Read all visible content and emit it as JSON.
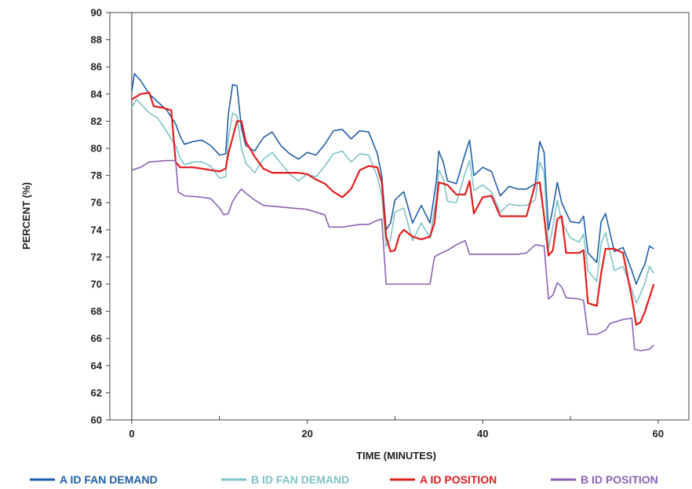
{
  "chart_data": {
    "type": "line",
    "title": "",
    "xlabel": "TIME (MINUTES)",
    "ylabel": "PERCENT (%)",
    "xlim": [
      -2.5,
      63.5
    ],
    "ylim": [
      60,
      90
    ],
    "xticks": [
      0,
      20,
      40,
      60
    ],
    "yticks": [
      60,
      62,
      64,
      66,
      68,
      70,
      72,
      74,
      76,
      78,
      80,
      82,
      84,
      86,
      88,
      90
    ],
    "grid": false,
    "legend_position": "bottom",
    "series": [
      {
        "name": "A ID FAN DEMAND",
        "color": "#1f5fa8",
        "points": [
          [
            0,
            84.2
          ],
          [
            0.3,
            85.5
          ],
          [
            1,
            85.0
          ],
          [
            2,
            84.0
          ],
          [
            3,
            83.4
          ],
          [
            4,
            82.8
          ],
          [
            5,
            81.8
          ],
          [
            5.5,
            80.9
          ],
          [
            6,
            80.3
          ],
          [
            7,
            80.5
          ],
          [
            8,
            80.6
          ],
          [
            9,
            80.2
          ],
          [
            10,
            79.5
          ],
          [
            10.7,
            79.6
          ],
          [
            11,
            82.5
          ],
          [
            11.5,
            84.7
          ],
          [
            12,
            84.6
          ],
          [
            12.5,
            81.5
          ],
          [
            13,
            80.2
          ],
          [
            14,
            79.8
          ],
          [
            15,
            80.8
          ],
          [
            16,
            81.2
          ],
          [
            17,
            80.2
          ],
          [
            18,
            79.6
          ],
          [
            19,
            79.2
          ],
          [
            20,
            79.7
          ],
          [
            21,
            79.5
          ],
          [
            22,
            80.3
          ],
          [
            23,
            81.3
          ],
          [
            24,
            81.4
          ],
          [
            25,
            80.7
          ],
          [
            26,
            81.3
          ],
          [
            27,
            81.2
          ],
          [
            28,
            79.6
          ],
          [
            28.5,
            78.0
          ],
          [
            29,
            74.0
          ],
          [
            29.5,
            74.5
          ],
          [
            30,
            76.2
          ],
          [
            31,
            76.8
          ],
          [
            32,
            74.5
          ],
          [
            33,
            75.8
          ],
          [
            34,
            74.5
          ],
          [
            34.7,
            77.5
          ],
          [
            35,
            79.8
          ],
          [
            35.5,
            79.0
          ],
          [
            36,
            77.6
          ],
          [
            37,
            77.4
          ],
          [
            38,
            79.6
          ],
          [
            38.5,
            80.6
          ],
          [
            39,
            78.0
          ],
          [
            40,
            78.6
          ],
          [
            41,
            78.3
          ],
          [
            42,
            76.5
          ],
          [
            43,
            77.2
          ],
          [
            44,
            77.0
          ],
          [
            45,
            77.0
          ],
          [
            46,
            77.4
          ],
          [
            46.5,
            80.5
          ],
          [
            47,
            79.7
          ],
          [
            47.5,
            74.0
          ],
          [
            48,
            75.6
          ],
          [
            48.5,
            77.5
          ],
          [
            49,
            76.0
          ],
          [
            50,
            74.6
          ],
          [
            51,
            74.5
          ],
          [
            51.5,
            75.0
          ],
          [
            52,
            72.3
          ],
          [
            53,
            71.6
          ],
          [
            53.5,
            74.6
          ],
          [
            54,
            75.2
          ],
          [
            55,
            72.4
          ],
          [
            56,
            72.7
          ],
          [
            57,
            71.0
          ],
          [
            57.5,
            70.0
          ],
          [
            58,
            70.8
          ],
          [
            58.5,
            71.5
          ],
          [
            59,
            72.8
          ],
          [
            59.5,
            72.6
          ]
        ]
      },
      {
        "name": "B ID FAN DEMAND",
        "color": "#7fc4c8",
        "points": [
          [
            0,
            83.0
          ],
          [
            0.5,
            83.6
          ],
          [
            1,
            83.3
          ],
          [
            2,
            82.6
          ],
          [
            3,
            82.2
          ],
          [
            4,
            81.2
          ],
          [
            5,
            80.2
          ],
          [
            5.5,
            79.3
          ],
          [
            6,
            78.8
          ],
          [
            7,
            79.0
          ],
          [
            8,
            79.0
          ],
          [
            9,
            78.7
          ],
          [
            10,
            77.8
          ],
          [
            10.7,
            77.9
          ],
          [
            11,
            80.7
          ],
          [
            11.5,
            82.6
          ],
          [
            12,
            82.4
          ],
          [
            12.5,
            80.0
          ],
          [
            13,
            78.9
          ],
          [
            14,
            78.2
          ],
          [
            15,
            79.2
          ],
          [
            16,
            79.7
          ],
          [
            17,
            78.9
          ],
          [
            18,
            78.1
          ],
          [
            19,
            77.6
          ],
          [
            20,
            78.1
          ],
          [
            21,
            77.9
          ],
          [
            22,
            78.7
          ],
          [
            23,
            79.6
          ],
          [
            24,
            79.8
          ],
          [
            25,
            79.0
          ],
          [
            26,
            79.6
          ],
          [
            27,
            79.5
          ],
          [
            28,
            77.9
          ],
          [
            28.5,
            76.5
          ],
          [
            29,
            72.8
          ],
          [
            29.5,
            73.3
          ],
          [
            30,
            75.3
          ],
          [
            31,
            75.6
          ],
          [
            32,
            73.2
          ],
          [
            33,
            74.5
          ],
          [
            34,
            73.4
          ],
          [
            34.7,
            76.3
          ],
          [
            35,
            78.4
          ],
          [
            35.5,
            77.8
          ],
          [
            36,
            76.1
          ],
          [
            37,
            76.0
          ],
          [
            38,
            78.2
          ],
          [
            38.5,
            79.1
          ],
          [
            39,
            76.9
          ],
          [
            40,
            77.3
          ],
          [
            41,
            76.8
          ],
          [
            42,
            75.3
          ],
          [
            43,
            75.9
          ],
          [
            44,
            75.8
          ],
          [
            45,
            75.8
          ],
          [
            46,
            76.2
          ],
          [
            46.5,
            79.0
          ],
          [
            47,
            78.2
          ],
          [
            47.5,
            72.6
          ],
          [
            48,
            74.2
          ],
          [
            48.5,
            76.2
          ],
          [
            49,
            74.6
          ],
          [
            50,
            73.4
          ],
          [
            51,
            73.1
          ],
          [
            51.5,
            73.7
          ],
          [
            52,
            71.0
          ],
          [
            53,
            70.2
          ],
          [
            53.5,
            73.0
          ],
          [
            54,
            73.8
          ],
          [
            55,
            71.0
          ],
          [
            56,
            71.3
          ],
          [
            57,
            69.6
          ],
          [
            57.5,
            68.6
          ],
          [
            58,
            69.3
          ],
          [
            58.5,
            70.1
          ],
          [
            59,
            71.3
          ],
          [
            59.5,
            70.8
          ]
        ]
      },
      {
        "name": "A ID POSITION",
        "color": "#e41d1d",
        "points": [
          [
            0,
            83.6
          ],
          [
            1,
            84.0
          ],
          [
            2,
            84.1
          ],
          [
            2.5,
            83.1
          ],
          [
            3.5,
            83.0
          ],
          [
            4.5,
            82.8
          ],
          [
            5,
            79.0
          ],
          [
            5.5,
            78.6
          ],
          [
            7,
            78.6
          ],
          [
            8,
            78.5
          ],
          [
            9,
            78.4
          ],
          [
            10,
            78.3
          ],
          [
            10.7,
            78.5
          ],
          [
            11,
            79.6
          ],
          [
            12,
            82.0
          ],
          [
            12.5,
            82.0
          ],
          [
            13,
            80.5
          ],
          [
            14,
            79.4
          ],
          [
            15,
            78.5
          ],
          [
            16,
            78.2
          ],
          [
            18,
            78.2
          ],
          [
            19,
            78.2
          ],
          [
            20,
            78.1
          ],
          [
            21,
            77.7
          ],
          [
            22,
            77.4
          ],
          [
            23,
            76.8
          ],
          [
            24,
            76.4
          ],
          [
            25,
            77.0
          ],
          [
            26,
            78.4
          ],
          [
            27,
            78.7
          ],
          [
            28,
            78.6
          ],
          [
            28.5,
            77.5
          ],
          [
            29,
            73.5
          ],
          [
            29.5,
            72.4
          ],
          [
            30,
            72.5
          ],
          [
            30.5,
            73.6
          ],
          [
            31,
            74.0
          ],
          [
            32,
            73.5
          ],
          [
            33,
            73.3
          ],
          [
            34,
            73.5
          ],
          [
            34.5,
            74.5
          ],
          [
            35,
            77.5
          ],
          [
            36,
            77.3
          ],
          [
            37,
            76.6
          ],
          [
            38,
            76.6
          ],
          [
            38.5,
            77.6
          ],
          [
            39,
            75.2
          ],
          [
            40,
            76.4
          ],
          [
            41,
            76.5
          ],
          [
            42,
            75.0
          ],
          [
            43,
            75.0
          ],
          [
            44,
            75.0
          ],
          [
            45,
            75.0
          ],
          [
            46,
            77.4
          ],
          [
            46.5,
            77.5
          ],
          [
            47,
            75.0
          ],
          [
            47.5,
            72.1
          ],
          [
            48,
            72.5
          ],
          [
            48.5,
            74.8
          ],
          [
            49,
            75.0
          ],
          [
            49.5,
            72.3
          ],
          [
            50,
            72.3
          ],
          [
            51,
            72.3
          ],
          [
            51.5,
            72.5
          ],
          [
            52,
            68.6
          ],
          [
            53,
            68.4
          ],
          [
            53.5,
            70.8
          ],
          [
            54,
            72.6
          ],
          [
            55,
            72.6
          ],
          [
            56,
            72.3
          ],
          [
            57,
            69.0
          ],
          [
            57.5,
            67.0
          ],
          [
            58,
            67.2
          ],
          [
            58.5,
            68.0
          ],
          [
            59,
            69.0
          ],
          [
            59.5,
            70.0
          ]
        ]
      },
      {
        "name": "B ID POSITION",
        "color": "#8a63b5",
        "points": [
          [
            0,
            78.4
          ],
          [
            1,
            78.6
          ],
          [
            2,
            79.0
          ],
          [
            4,
            79.1
          ],
          [
            5,
            79.1
          ],
          [
            5.3,
            76.8
          ],
          [
            6,
            76.5
          ],
          [
            8,
            76.4
          ],
          [
            9,
            76.3
          ],
          [
            10,
            75.6
          ],
          [
            10.5,
            75.1
          ],
          [
            11,
            75.2
          ],
          [
            11.5,
            76.1
          ],
          [
            12,
            76.6
          ],
          [
            12.5,
            77.0
          ],
          [
            13,
            76.7
          ],
          [
            14,
            76.2
          ],
          [
            15,
            75.8
          ],
          [
            20,
            75.5
          ],
          [
            21,
            75.3
          ],
          [
            22,
            75.1
          ],
          [
            22.5,
            74.2
          ],
          [
            24,
            74.2
          ],
          [
            26,
            74.4
          ],
          [
            27,
            74.4
          ],
          [
            28,
            74.7
          ],
          [
            28.5,
            74.8
          ],
          [
            29,
            70.0
          ],
          [
            30,
            70.0
          ],
          [
            34,
            70.0
          ],
          [
            34.5,
            72.0
          ],
          [
            35,
            72.2
          ],
          [
            36,
            72.5
          ],
          [
            37,
            72.9
          ],
          [
            38,
            73.2
          ],
          [
            38.5,
            72.2
          ],
          [
            40,
            72.2
          ],
          [
            42,
            72.2
          ],
          [
            44,
            72.2
          ],
          [
            45,
            72.3
          ],
          [
            46,
            72.9
          ],
          [
            47,
            72.8
          ],
          [
            47.5,
            68.9
          ],
          [
            48,
            69.2
          ],
          [
            48.5,
            70.1
          ],
          [
            49,
            69.8
          ],
          [
            49.5,
            69.0
          ],
          [
            51,
            68.9
          ],
          [
            51.5,
            68.8
          ],
          [
            52,
            66.3
          ],
          [
            53,
            66.3
          ],
          [
            54,
            66.6
          ],
          [
            54.5,
            67.1
          ],
          [
            56,
            67.4
          ],
          [
            57,
            67.5
          ],
          [
            57.3,
            65.2
          ],
          [
            58,
            65.1
          ],
          [
            59,
            65.2
          ],
          [
            59.5,
            65.5
          ]
        ]
      }
    ]
  }
}
